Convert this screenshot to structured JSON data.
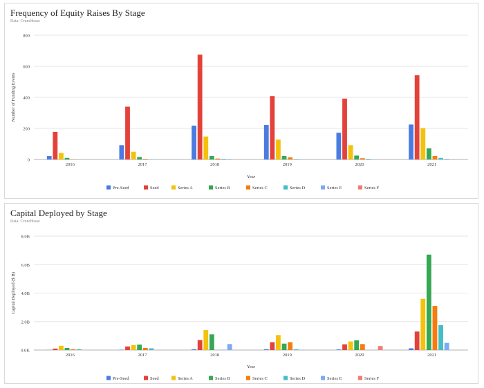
{
  "colors": [
    "#4a7be0",
    "#e3423a",
    "#f4c20d",
    "#34a853",
    "#f57c0f",
    "#46bdc6",
    "#7baaf7",
    "#f07b72"
  ],
  "chart_data": [
    {
      "type": "bar",
      "title": "Frequency of Equity Raises By Stage",
      "subtitle": "Data: Crunchbase",
      "xlabel": "Year",
      "ylabel": "Number of Funding Events",
      "ylim": [
        0,
        800
      ],
      "ytick_values": [
        0,
        200,
        400,
        600,
        800
      ],
      "ytick_labels": [
        "0",
        "200",
        "400",
        "600",
        "800"
      ],
      "categories": [
        "2016",
        "2017",
        "2018",
        "2019",
        "2020",
        "2021"
      ],
      "grid": true,
      "legend_position": "bottom",
      "series": [
        {
          "name": "Pre-Seed",
          "values": [
            22,
            92,
            218,
            222,
            172,
            225
          ]
        },
        {
          "name": "Seed",
          "values": [
            178,
            340,
            675,
            408,
            392,
            542
          ]
        },
        {
          "name": "Series A",
          "values": [
            42,
            50,
            148,
            128,
            92,
            202
          ]
        },
        {
          "name": "Series B",
          "values": [
            10,
            16,
            22,
            22,
            25,
            72
          ]
        },
        {
          "name": "Series C",
          "values": [
            2,
            4,
            6,
            14,
            8,
            22
          ]
        },
        {
          "name": "Series D",
          "values": [
            1,
            2,
            4,
            3,
            4,
            10
          ]
        },
        {
          "name": "Series E",
          "values": [
            0,
            1,
            3,
            2,
            2,
            4
          ]
        },
        {
          "name": "Series F",
          "values": [
            0,
            0,
            1,
            1,
            1,
            2
          ]
        }
      ]
    },
    {
      "type": "bar",
      "title": "Capital Deployed by Stage",
      "subtitle": "Data: Crunchbase",
      "xlabel": "Year",
      "ylabel": "Capital Deployed ($ B)",
      "ylim": [
        0,
        8
      ],
      "ytick_values": [
        0,
        2,
        4,
        6,
        8
      ],
      "ytick_labels": [
        "0.0K",
        "2.0B",
        "4.0B",
        "6.0B",
        "8.0B"
      ],
      "categories": [
        "2016",
        "2017",
        "2018",
        "2019",
        "2020",
        "2021"
      ],
      "grid": true,
      "legend_position": "bottom",
      "series": [
        {
          "name": "Pre-Seed",
          "values": [
            0.01,
            0.02,
            0.05,
            0.05,
            0.04,
            0.12
          ]
        },
        {
          "name": "Seed",
          "values": [
            0.1,
            0.25,
            0.7,
            0.55,
            0.4,
            1.3
          ]
        },
        {
          "name": "Series A",
          "values": [
            0.3,
            0.35,
            1.4,
            1.05,
            0.6,
            3.6
          ]
        },
        {
          "name": "Series B",
          "values": [
            0.15,
            0.38,
            1.1,
            0.45,
            0.68,
            6.7
          ]
        },
        {
          "name": "Series C",
          "values": [
            0.05,
            0.15,
            0.0,
            0.55,
            0.42,
            3.1
          ]
        },
        {
          "name": "Series D",
          "values": [
            0.05,
            0.12,
            0.02,
            0.05,
            0.0,
            1.75
          ]
        },
        {
          "name": "Series E",
          "values": [
            0.0,
            0.0,
            0.42,
            0.02,
            0.0,
            0.5
          ]
        },
        {
          "name": "Series F",
          "values": [
            0.0,
            0.0,
            0.0,
            0.0,
            0.28,
            0.0
          ]
        }
      ]
    }
  ]
}
